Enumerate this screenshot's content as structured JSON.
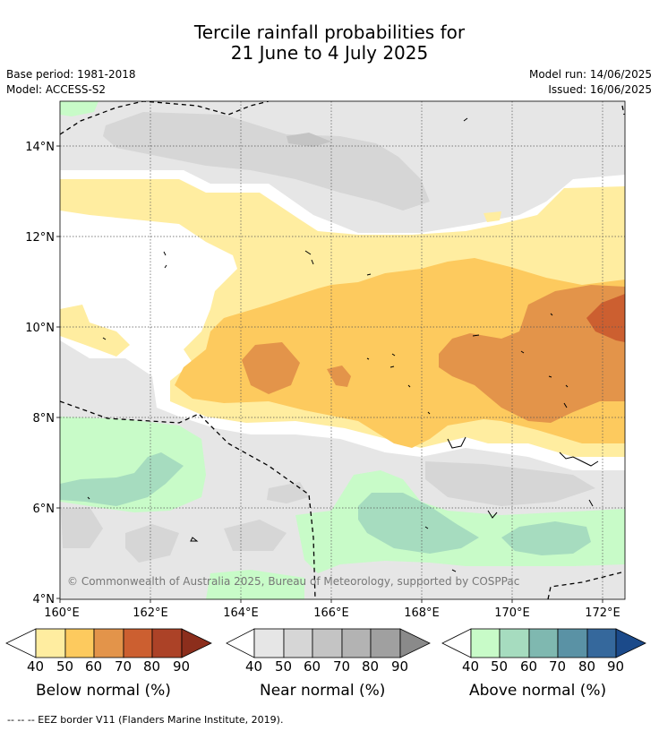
{
  "header": {
    "title_line1": "Tercile rainfall probabilities for",
    "title_line2": "21 June to 4 July 2025",
    "base_period": "Base period: 1981-2018",
    "model": "Model: ACCESS-S2",
    "model_run": "Model run: 14/06/2025",
    "issued": "Issued: 16/06/2025"
  },
  "map": {
    "lat_labels": [
      "14°N",
      "12°N",
      "10°N",
      "8°N",
      "6°N",
      "4°N"
    ],
    "lon_labels": [
      "160°E",
      "162°E",
      "164°E",
      "166°E",
      "168°E",
      "170°E",
      "172°E"
    ],
    "copyright": "© Commonwealth of Australia 2025, Bureau of Meteorology, supported by COSPPac"
  },
  "legends": [
    {
      "title": "Below normal (%)",
      "ticks": [
        "40",
        "50",
        "60",
        "70",
        "80",
        "90"
      ],
      "colors": [
        "#ffeda0",
        "#fdca5e",
        "#e3944a",
        "#cc5f30",
        "#ac4227",
        "#8c2e1c"
      ]
    },
    {
      "title": "Near normal (%)",
      "ticks": [
        "40",
        "50",
        "60",
        "70",
        "80",
        "90"
      ],
      "colors": [
        "#e6e6e6",
        "#d6d6d6",
        "#c4c4c4",
        "#b3b3b3",
        "#a0a0a0",
        "#8a8a8a"
      ]
    },
    {
      "title": "Above normal (%)",
      "ticks": [
        "40",
        "50",
        "60",
        "70",
        "80",
        "90"
      ],
      "colors": [
        "#c8fbc8",
        "#a6dcbf",
        "#7fb8b0",
        "#5a92a5",
        "#35689c",
        "#1b4a8a"
      ]
    }
  ],
  "footnote": "--  --  -- EEZ border V11 (Flanders Marine Institute, 2019)."
}
